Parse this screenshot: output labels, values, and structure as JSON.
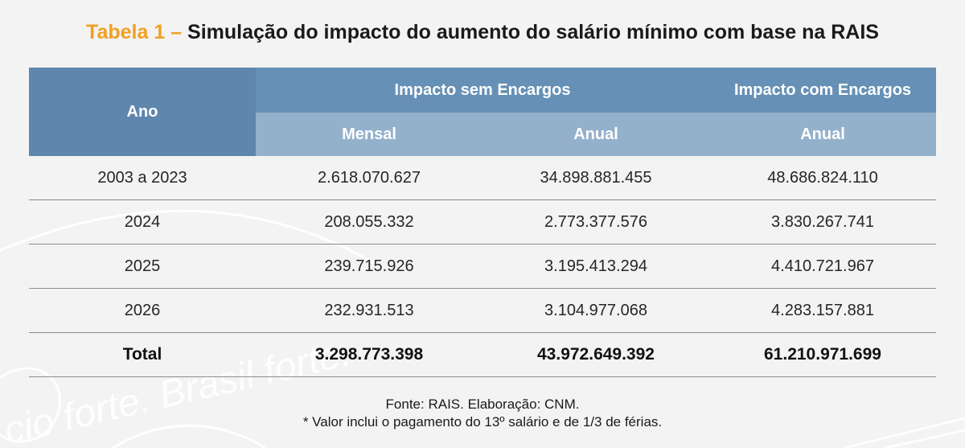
{
  "title": {
    "prefix": "Tabela 1 –",
    "text": "Simulação do impacto do aumento do salário mínimo com base na RAIS"
  },
  "watermark": {
    "text": "cio forte. Brasil forte."
  },
  "table": {
    "header": {
      "ano": "Ano",
      "group_sem": "Impacto sem Encargos",
      "group_com": "Impacto com Encargos",
      "sub_mensal": "Mensal",
      "sub_anual_sem": "Anual",
      "sub_anual_com": "Anual"
    },
    "rows": [
      {
        "ano": "2003 a 2023",
        "mensal": "2.618.070.627",
        "anual_sem": "34.898.881.455",
        "anual_com": "48.686.824.110"
      },
      {
        "ano": "2024",
        "mensal": "208.055.332",
        "anual_sem": "2.773.377.576",
        "anual_com": "3.830.267.741"
      },
      {
        "ano": "2025",
        "mensal": "239.715.926",
        "anual_sem": "3.195.413.294",
        "anual_com": "4.410.721.967"
      },
      {
        "ano": "2026",
        "mensal": "232.931.513",
        "anual_sem": "3.104.977.068",
        "anual_com": "4.283.157.881"
      }
    ],
    "total": {
      "ano": "Total",
      "mensal": "3.298.773.398",
      "anual_sem": "43.972.649.392",
      "anual_com": "61.210.971.699"
    }
  },
  "notes": {
    "source": "Fonte: RAIS. Elaboração: CNM.",
    "footnote": "* Valor inclui o pagamento do 13º salário e de 1/3 de férias."
  },
  "colors": {
    "title_accent": "#f0a023",
    "header_dark": "#5f86ad",
    "header_light": "#94b1cb"
  }
}
